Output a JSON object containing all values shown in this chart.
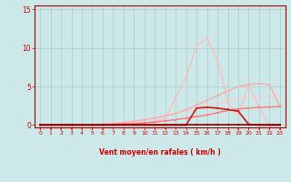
{
  "background_color": "#cce8e8",
  "grid_color": "#aacccc",
  "xlabel": "Vent moyen/en rafales ( km/h )",
  "xlim": [
    -0.5,
    23.5
  ],
  "ylim": [
    -0.3,
    15.5
  ],
  "yticks": [
    0,
    5,
    10,
    15
  ],
  "xticks": [
    0,
    1,
    2,
    3,
    4,
    5,
    6,
    7,
    8,
    9,
    10,
    11,
    12,
    13,
    14,
    15,
    16,
    17,
    18,
    19,
    20,
    21,
    22,
    23
  ],
  "series": [
    {
      "x": [
        0,
        1,
        2,
        3,
        4,
        5,
        6,
        7,
        8,
        9,
        10,
        11,
        12,
        13,
        14,
        15,
        16,
        17,
        18,
        19,
        20,
        21,
        22,
        23
      ],
      "y": [
        0,
        0,
        0,
        0,
        0,
        0,
        0,
        0,
        0,
        0,
        0,
        0,
        0,
        0,
        0,
        0,
        0,
        0,
        0,
        0,
        0,
        0,
        0,
        0
      ],
      "color": "#880000",
      "linewidth": 1.2,
      "marker": "s",
      "markersize": 2.0,
      "zorder": 6
    },
    {
      "x": [
        0,
        1,
        2,
        3,
        4,
        5,
        6,
        7,
        8,
        9,
        10,
        11,
        12,
        13,
        14,
        15,
        16,
        17,
        18,
        19,
        20,
        21,
        22,
        23
      ],
      "y": [
        0,
        0,
        0,
        0,
        0,
        0,
        0,
        0,
        0,
        0,
        0,
        0,
        0,
        0,
        0,
        2.2,
        2.3,
        2.2,
        2.0,
        1.8,
        0.1,
        0,
        0,
        0
      ],
      "color": "#cc2222",
      "linewidth": 1.3,
      "marker": "s",
      "markersize": 2.0,
      "zorder": 5
    },
    {
      "x": [
        0,
        1,
        2,
        3,
        4,
        5,
        6,
        7,
        8,
        9,
        10,
        11,
        12,
        13,
        14,
        15,
        16,
        17,
        18,
        19,
        20,
        21,
        22,
        23
      ],
      "y": [
        0,
        0,
        0,
        0,
        0,
        0,
        0.05,
        0.1,
        0.15,
        0.2,
        0.3,
        0.4,
        0.55,
        0.7,
        0.9,
        1.1,
        1.3,
        1.6,
        1.9,
        2.1,
        2.2,
        2.3,
        2.35,
        2.4
      ],
      "color": "#ff7777",
      "linewidth": 1.0,
      "marker": "s",
      "markersize": 1.8,
      "zorder": 4
    },
    {
      "x": [
        0,
        1,
        2,
        3,
        4,
        5,
        6,
        7,
        8,
        9,
        10,
        11,
        12,
        13,
        14,
        15,
        16,
        17,
        18,
        19,
        20,
        21,
        22,
        23
      ],
      "y": [
        0,
        0,
        0,
        0,
        0,
        0.05,
        0.1,
        0.2,
        0.3,
        0.5,
        0.7,
        0.9,
        1.2,
        1.5,
        2.0,
        2.6,
        3.2,
        3.8,
        4.4,
        5.0,
        5.3,
        5.4,
        5.2,
        2.4
      ],
      "color": "#ffaaaa",
      "linewidth": 1.0,
      "marker": "s",
      "markersize": 1.8,
      "zorder": 3
    },
    {
      "x": [
        0,
        1,
        2,
        3,
        4,
        5,
        6,
        7,
        8,
        9,
        10,
        11,
        12,
        13,
        14,
        15,
        16,
        17,
        18,
        19,
        20,
        21,
        22,
        23
      ],
      "y": [
        0,
        0,
        0,
        0,
        0,
        0,
        0,
        0.05,
        0.1,
        0.2,
        0.3,
        0.5,
        0.8,
        3.5,
        6.2,
        10.3,
        11.2,
        8.5,
        3.0,
        1.2,
        5.3,
        2.3,
        0,
        0
      ],
      "color": "#ffbbbb",
      "linewidth": 0.9,
      "marker": "s",
      "markersize": 1.8,
      "zorder": 2
    },
    {
      "x": [
        0,
        1,
        2,
        3,
        4,
        5,
        6,
        7,
        8,
        9,
        10,
        11,
        12,
        13,
        14,
        15,
        16,
        17,
        18,
        19,
        20,
        21,
        22,
        23
      ],
      "y": [
        0,
        0,
        0,
        0,
        0,
        0.05,
        0.15,
        0.25,
        0.35,
        0.5,
        0.7,
        0.95,
        1.2,
        1.5,
        1.8,
        2.1,
        2.5,
        2.8,
        3.1,
        3.4,
        3.6,
        3.7,
        3.75,
        3.8
      ],
      "color": "#ffcccc",
      "linewidth": 0.9,
      "marker": "s",
      "markersize": 1.8,
      "zorder": 1
    }
  ],
  "xlabel_color": "#cc0000",
  "tick_color": "#cc0000",
  "spine_color": "#990000"
}
